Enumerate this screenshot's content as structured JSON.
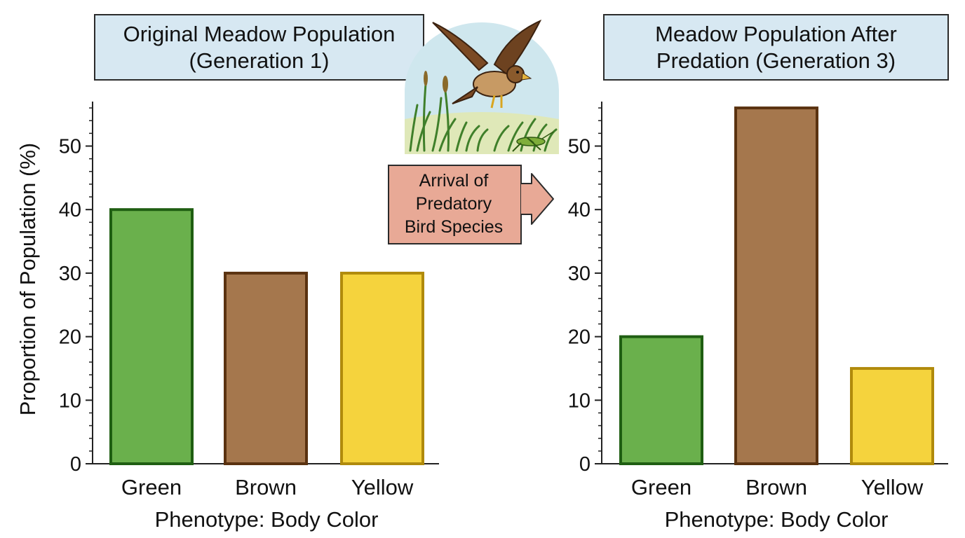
{
  "callout": {
    "lines": [
      "Arrival of",
      "Predatory",
      "Bird Species"
    ],
    "fill": "#e8a996"
  },
  "illustration": {
    "icons": [
      "hawk-icon",
      "grasshopper-icon",
      "grass-icon"
    ]
  },
  "chart_data": [
    {
      "type": "bar",
      "title": [
        "Original Meadow Population",
        "(Generation 1)"
      ],
      "xlabel": "Phenotype: Body Color",
      "ylabel": "Proportion of Population (%)",
      "categories": [
        "Green",
        "Brown",
        "Yellow"
      ],
      "values": [
        40,
        30,
        30
      ],
      "ylim": [
        0,
        57
      ],
      "yticks": [
        0,
        10,
        20,
        30,
        40,
        50
      ],
      "grid": false,
      "colors": [
        "#6ab04c",
        "#a5774d",
        "#f5d33d"
      ],
      "edge_colors": [
        "#1f5e12",
        "#5a3210",
        "#b08a0c"
      ]
    },
    {
      "type": "bar",
      "title": [
        "Meadow Population After",
        "Predation (Generation 3)"
      ],
      "xlabel": "Phenotype: Body Color",
      "ylabel": "",
      "categories": [
        "Green",
        "Brown",
        "Yellow"
      ],
      "values": [
        20,
        56,
        15
      ],
      "ylim": [
        0,
        57
      ],
      "yticks": [
        0,
        10,
        20,
        30,
        40,
        50
      ],
      "grid": false,
      "colors": [
        "#6ab04c",
        "#a5774d",
        "#f5d33d"
      ],
      "edge_colors": [
        "#1f5e12",
        "#5a3210",
        "#b08a0c"
      ]
    }
  ]
}
